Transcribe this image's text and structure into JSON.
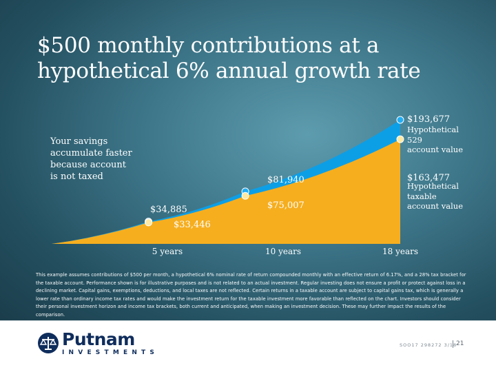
{
  "title_lines": [
    "$500 monthly contributions at a",
    "hypothetical 6% annual growth rate"
  ],
  "side_note_lines": [
    "Your savings",
    "accumulate faster",
    "because account",
    "is not taxed"
  ],
  "chart_data": {
    "type": "area",
    "title": "$500 monthly contributions at a hypothetical 6% annual growth rate",
    "x": [
      0,
      5,
      10,
      18
    ],
    "x_ticks": [
      {
        "x": 5,
        "label": "5 years"
      },
      {
        "x": 10,
        "label": "10 years"
      },
      {
        "x": 18,
        "label": "18 years"
      }
    ],
    "ylim": [
      0,
      200000
    ],
    "colors": {
      "529": "#0d9fe6",
      "taxable": "#f6ae1f",
      "marker_529": "#22aef4",
      "marker_taxable": "#ffe9a3"
    },
    "series": [
      {
        "key": "529",
        "name": "Hypothetical 529 account value",
        "legend_lines": [
          "Hypothetical",
          "529",
          "account value"
        ],
        "values": [
          0,
          34885,
          81940,
          193677
        ],
        "labels": [
          "",
          "$34,885",
          "$81,940",
          "$193,677"
        ]
      },
      {
        "key": "taxable",
        "name": "Hypothetical taxable account value",
        "legend_lines": [
          "Hypothetical",
          "taxable",
          "account value"
        ],
        "values": [
          0,
          33446,
          75007,
          163477
        ],
        "labels": [
          "",
          "$33,446",
          "$75,007",
          "$163,477"
        ]
      }
    ]
  },
  "disclaimer": "This example assumes contributions of $500 per month, a hypothetical 6% nominal rate of return compounded monthly with an effective return of 6.17%, and a 28% tax bracket for the taxable account. Performance shown is for illustrative purposes and is not related to an actual investment. Regular investing does not ensure a profit or protect against loss in a declining market. Capital gains, exemptions, deductions, and local taxes are not reflected. Certain returns in a taxable account are subject to capital gains tax, which is generally a lower rate than ordinary income tax rates and would make the investment return for the taxable investment more favorable than reflected on the chart. Investors should consider their personal investment horizon and income tax brackets, both current and anticipated, when making an investment decision. These may further impact the results of the comparison.",
  "footer": {
    "logo_name": "Putnam",
    "logo_sub": "INVESTMENTS",
    "code": "SOO17  298272  3/18",
    "page_number": "21"
  }
}
